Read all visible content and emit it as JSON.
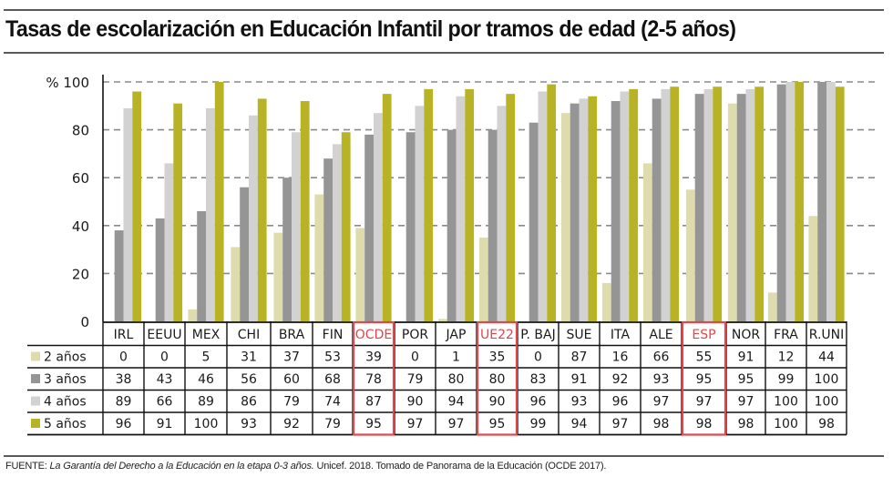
{
  "title": "Tasas de escolarización en Educación Infantil por tramos de edad (2-5 años)",
  "footer": {
    "label": "FUENTE:",
    "source_italic": "La Garantía del Derecho a la Educación en la etapa 0-3 años.",
    "source_rest": "Unicef. 2018. Tomado de Panorama de la Educación (OCDE 2017)."
  },
  "chart_data": {
    "type": "bar",
    "title": "Tasas de escolarización en Educación Infantil por tramos de edad (2-5 años)",
    "xlabel": "",
    "ylabel": "%",
    "y_axis_prefix": "%",
    "ylim": [
      0,
      100
    ],
    "yticks": [
      0,
      20,
      40,
      60,
      80,
      100
    ],
    "grid": "dashed-horizontal",
    "legend_placement": "table-left",
    "categories": [
      "IRL",
      "EEUU",
      "MEX",
      "CHI",
      "BRA",
      "FIN",
      "OCDE",
      "POR",
      "JAP",
      "UE22",
      "P. BAJ",
      "SUE",
      "ITA",
      "ALE",
      "ESP",
      "NOR",
      "FRA",
      "R.UNI"
    ],
    "highlighted_categories": [
      "OCDE",
      "UE22",
      "ESP"
    ],
    "highlight_color": "#e0474c",
    "series": [
      {
        "name": "2 años",
        "color": "#dedbac",
        "values": [
          0,
          0,
          5,
          31,
          37,
          53,
          39,
          0,
          1,
          35,
          0,
          87,
          16,
          66,
          55,
          91,
          12,
          44
        ]
      },
      {
        "name": "3 años",
        "color": "#959595",
        "values": [
          38,
          43,
          46,
          56,
          60,
          68,
          78,
          79,
          80,
          80,
          83,
          91,
          92,
          93,
          95,
          95,
          99,
          100
        ]
      },
      {
        "name": "4 años",
        "color": "#d2d2d2",
        "values": [
          89,
          66,
          89,
          86,
          79,
          74,
          87,
          90,
          94,
          90,
          96,
          93,
          96,
          97,
          97,
          97,
          100,
          100
        ]
      },
      {
        "name": "5 años",
        "color": "#b7b324",
        "values": [
          96,
          91,
          100,
          93,
          92,
          79,
          95,
          97,
          97,
          95,
          99,
          94,
          97,
          98,
          98,
          98,
          100,
          98
        ]
      }
    ]
  }
}
